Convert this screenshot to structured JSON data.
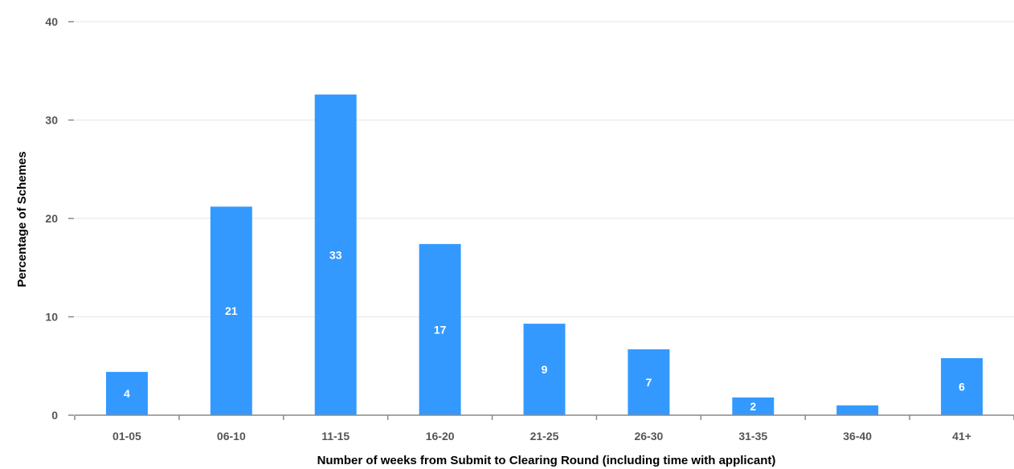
{
  "chart_data": {
    "type": "bar",
    "title": "",
    "xlabel": "Number of weeks from Submit to Clearing Round (including time with applicant)",
    "ylabel": "Percentage of Schemes",
    "categories": [
      "01-05",
      "06-10",
      "11-15",
      "16-20",
      "21-25",
      "26-30",
      "31-35",
      "36-40",
      "41+"
    ],
    "values": [
      4.4,
      21.2,
      32.6,
      17.4,
      9.3,
      6.7,
      1.8,
      1.0,
      5.8
    ],
    "data_labels": [
      "4",
      "21",
      "33",
      "17",
      "9",
      "7",
      "2",
      "",
      "6"
    ],
    "ylim": [
      0,
      40
    ],
    "yticks": [
      0,
      10,
      20,
      30,
      40
    ],
    "grid": true,
    "legend": "none",
    "bar_color": "#3399ff"
  }
}
